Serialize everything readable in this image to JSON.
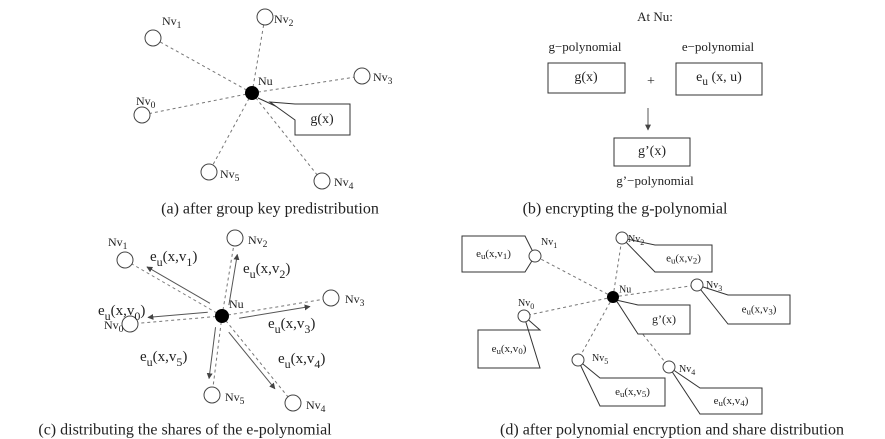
{
  "panels": [
    {
      "caption": "(a) after group key predistribution",
      "center": "Nu",
      "nodes": [
        [
          "Nv",
          "1"
        ],
        [
          "Nv",
          "2"
        ],
        [
          "Nv",
          "3"
        ],
        [
          "Nv",
          "0"
        ],
        [
          "Nv",
          "5"
        ],
        [
          "Nv",
          "4"
        ]
      ],
      "box": "g(x)"
    },
    {
      "caption": "(b) encrypting the g-polynomial",
      "heading": "At Nu:",
      "g_title": "g−polynomial",
      "g_box": "g(x)",
      "plus": "+",
      "e_title": "e−polynomial",
      "e_box": [
        "e",
        "u",
        " (x, u)"
      ],
      "result_box": "g’(x)",
      "result_title": "g’−polynomial"
    },
    {
      "caption": "(c) distributing the shares of the e-polynomial",
      "center": "Nu",
      "nodes": [
        [
          "Nv",
          "1"
        ],
        [
          "Nv",
          "2"
        ],
        [
          "Nv",
          "3"
        ],
        [
          "Nv",
          "0"
        ],
        [
          "Nv",
          "5"
        ],
        [
          "Nv",
          "4"
        ]
      ],
      "shares": [
        [
          "e",
          "u",
          "(x,v",
          "1",
          ")"
        ],
        [
          "e",
          "u",
          "(x,v",
          "2",
          ")"
        ],
        [
          "e",
          "u",
          "(x,v",
          "3",
          ")"
        ],
        [
          "e",
          "u",
          "(x,v",
          "0",
          ")"
        ],
        [
          "e",
          "u",
          "(x,v",
          "5",
          ")"
        ],
        [
          "e",
          "u",
          "(x,v",
          "4",
          ")"
        ]
      ]
    },
    {
      "caption": "(d) after polynomial encryption and share distribution",
      "center": "Nu",
      "nodes": [
        [
          "Nv",
          "1"
        ],
        [
          "Nv",
          "2"
        ],
        [
          "Nv",
          "3"
        ],
        [
          "Nv",
          "0"
        ],
        [
          "Nv",
          "5"
        ],
        [
          "Nv",
          "4"
        ]
      ],
      "shares": [
        [
          "e",
          "u",
          "(x,v",
          "1",
          ")"
        ],
        [
          "e",
          "u",
          "(x,v",
          "2",
          ")"
        ],
        [
          "e",
          "u",
          "(x,v",
          "3",
          ")"
        ],
        [
          "e",
          "u",
          "(x,v",
          "0",
          ")"
        ],
        [
          "e",
          "u",
          "(x,v",
          "5",
          ")"
        ],
        [
          "e",
          "u",
          "(x,v",
          "4",
          ")"
        ]
      ],
      "box": "g’(x)"
    }
  ]
}
